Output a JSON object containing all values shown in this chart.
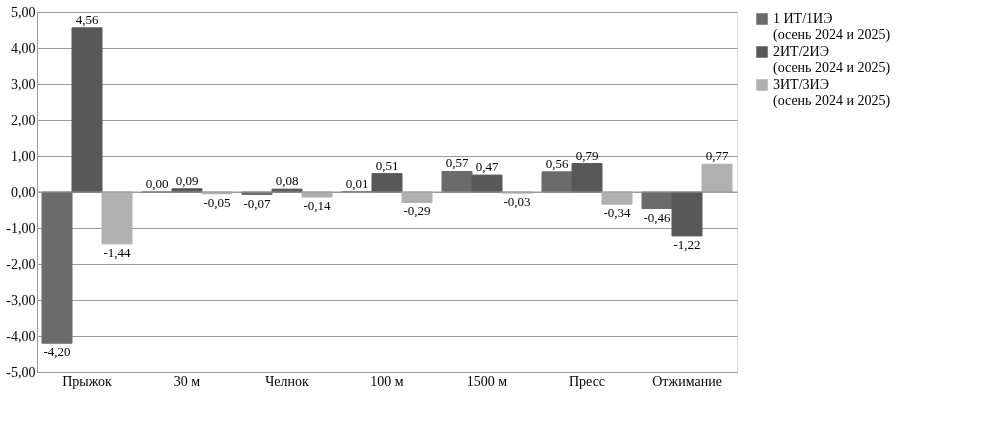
{
  "chart_data": {
    "type": "bar",
    "categories": [
      "Прыжок",
      "30 м",
      "Челнок",
      "100 м",
      "1500 м",
      "Пресс",
      "Отжимание"
    ],
    "series": [
      {
        "name": "1 ИТ/1ИЭ (осень 2024 и 2025)",
        "color": "#6b6b6b",
        "values": [
          -4.2,
          0.0,
          -0.07,
          0.01,
          0.57,
          0.56,
          -0.46
        ],
        "value_labels": [
          "-4,20",
          "0,00",
          "-0,07",
          "0,01",
          "0,57",
          "0,56",
          "-0,46"
        ]
      },
      {
        "name": "2ИТ/2ИЭ (осень 2024 и 2025)",
        "color": "#585858",
        "values": [
          4.56,
          0.09,
          0.08,
          0.51,
          0.47,
          0.79,
          -1.22
        ],
        "value_labels": [
          "4,56",
          "0,09",
          "0,08",
          "0,51",
          "0,47",
          "0,79",
          "-1,22"
        ]
      },
      {
        "name": "3ИТ/3ИЭ (осень 2024 и 2025)",
        "color": "#b0b0b0",
        "values": [
          -1.44,
          -0.05,
          -0.14,
          -0.29,
          -0.03,
          -0.34,
          0.77
        ],
        "value_labels": [
          "-1,44",
          "-0,05",
          "-0,14",
          "-0,29",
          "-0,03",
          "-0,34",
          "0,77"
        ]
      }
    ],
    "ylim": [
      -5,
      5
    ],
    "yticks": [
      {
        "value": -5,
        "label": "-5,00"
      },
      {
        "value": -4,
        "label": "-4,00"
      },
      {
        "value": -3,
        "label": "-3,00"
      },
      {
        "value": -2,
        "label": "-2,00"
      },
      {
        "value": -1,
        "label": "-1,00"
      },
      {
        "value": 0,
        "label": "0,00"
      },
      {
        "value": 1,
        "label": "1,00"
      },
      {
        "value": 2,
        "label": "2,00"
      },
      {
        "value": 3,
        "label": "3,00"
      },
      {
        "value": 4,
        "label": "4,00"
      },
      {
        "value": 5,
        "label": "5,00"
      }
    ],
    "grid": "y",
    "legend": "right"
  }
}
